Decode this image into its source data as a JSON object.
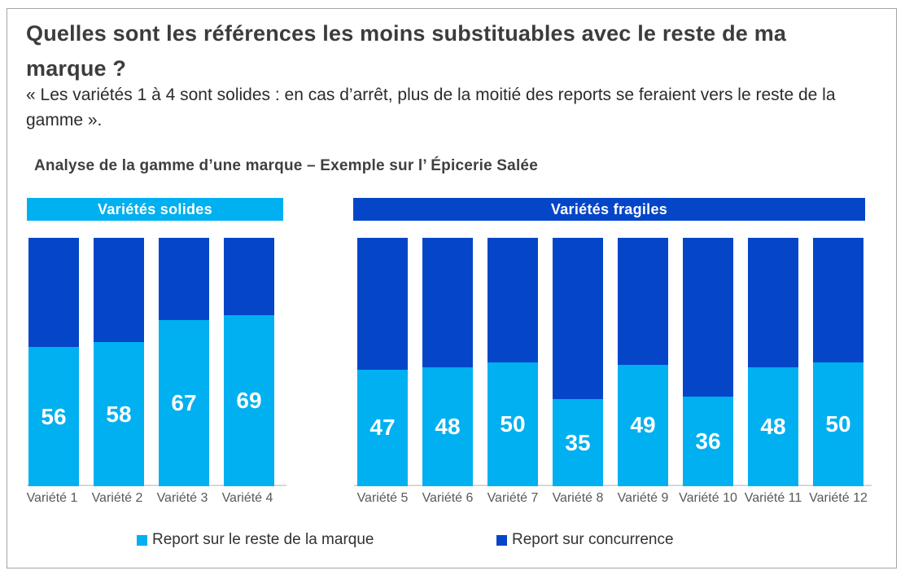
{
  "header": {
    "title": "Quelles sont les références les moins substituables avec le reste de ma marque ?",
    "quote": "« Les variétés 1 à 4 sont solides : en cas d’arrêt, plus de la moitié des reports se feraient vers le reste de la gamme »."
  },
  "colors": {
    "light_blue": "#00B0F0",
    "dark_blue": "#0546C8",
    "title_text": "#3C3C3C",
    "axis_text": "#595959",
    "axis_line": "#D8D8D8",
    "frame_border": "#A5A5A5"
  },
  "chart_data": {
    "type": "bar",
    "stacked": true,
    "title": "Analyse de la gamme d’une marque – Exemple sur l’ Épicerie Salée",
    "unit": "%",
    "ylim": [
      0,
      100
    ],
    "grid": false,
    "legend_position": "bottom",
    "categories": [
      "Variété 1",
      "Variété 2",
      "Variété 3",
      "Variété 4",
      "Variété 5",
      "Variété 6",
      "Variété 7",
      "Variété 8",
      "Variété 9",
      "Variété 10",
      "Variété 11",
      "Variété 12"
    ],
    "series": [
      {
        "name": "Report sur le reste de la marque",
        "color": "#00B0F0",
        "values": [
          56,
          58,
          67,
          69,
          47,
          48,
          50,
          35,
          49,
          36,
          48,
          50
        ]
      },
      {
        "name": "Report sur concurrence",
        "color": "#0546C8",
        "values": [
          44,
          42,
          33,
          31,
          53,
          52,
          50,
          65,
          51,
          64,
          52,
          50
        ]
      }
    ],
    "groups": [
      {
        "label": "Variétés solides",
        "color": "#00B0F0"
      },
      {
        "label": "Variétés fragiles",
        "color": "#0546C8"
      }
    ]
  },
  "legend": {
    "items": [
      {
        "label": "Report sur le reste de la marque",
        "color": "#00B0F0"
      },
      {
        "label": "Report sur concurrence",
        "color": "#0546C8"
      }
    ]
  }
}
